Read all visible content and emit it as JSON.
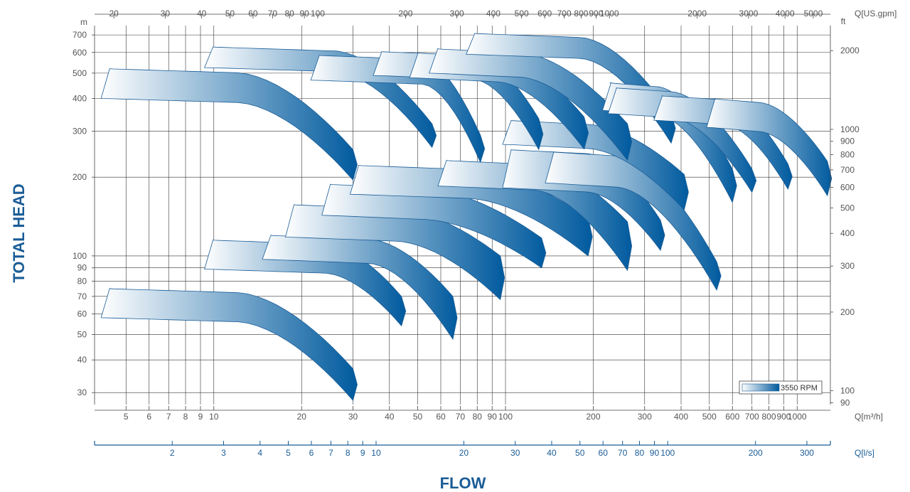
{
  "chart_data": {
    "type": "area",
    "title": "",
    "xlabel": "FLOW",
    "ylabel": "TOTAL HEAD",
    "x_scale": "log",
    "y_scale": "log",
    "xlim_m3h": [
      3.9,
      1300
    ],
    "ylim_m": [
      27,
      760
    ],
    "grid": true,
    "legend_position": "bottom-right",
    "legend_label": "3550 RPM",
    "gradient_colors": [
      "#ffffff",
      "#005a9e"
    ],
    "outline_color": "#1a5c96",
    "axes": {
      "bottom": {
        "unit": "Q[m³/h]",
        "ticks": [
          5,
          6,
          7,
          8,
          9,
          10,
          20,
          30,
          40,
          50,
          60,
          70,
          80,
          90,
          100,
          200,
          300,
          400,
          500,
          600,
          700,
          800,
          900,
          1000
        ]
      },
      "top": {
        "unit": "Q[US.gpm]",
        "ticks": [
          20,
          30,
          40,
          50,
          60,
          70,
          80,
          90,
          100,
          200,
          300,
          400,
          500,
          600,
          700,
          800,
          900,
          1000,
          2000,
          3000,
          4000,
          5000
        ]
      },
      "lps": {
        "unit": "Q[l/s]",
        "ticks": [
          2,
          3,
          4,
          5,
          6,
          7,
          8,
          9,
          10,
          20,
          30,
          40,
          50,
          60,
          70,
          80,
          90,
          100,
          200,
          300
        ]
      },
      "left": {
        "unit": "m",
        "ticks": [
          30,
          40,
          50,
          60,
          70,
          80,
          90,
          100,
          200,
          300,
          400,
          500,
          600,
          700
        ]
      },
      "right": {
        "unit": "ft",
        "ticks": [
          90,
          100,
          200,
          300,
          400,
          500,
          600,
          700,
          800,
          900,
          1000,
          2000
        ]
      }
    },
    "series": [
      {
        "q_min": 4.2,
        "q_knee": 12,
        "q_max": 30,
        "h_top_max": 520,
        "h_top_min": 255,
        "h_bot_max": 400,
        "h_bot_min": 195
      },
      {
        "q_min": 4.2,
        "q_knee": 12,
        "q_max": 30,
        "h_top_max": 75,
        "h_top_min": 37,
        "h_bot_max": 58,
        "h_bot_min": 28
      },
      {
        "q_min": 9.5,
        "q_knee": 24,
        "q_max": 44,
        "h_top_max": 115,
        "h_top_min": 70,
        "h_bot_max": 89,
        "h_bot_min": 54
      },
      {
        "q_min": 15,
        "q_knee": 34,
        "q_max": 66,
        "h_top_max": 120,
        "h_top_min": 70,
        "h_bot_max": 97,
        "h_bot_min": 48
      },
      {
        "q_min": 18,
        "q_knee": 42,
        "q_max": 96,
        "h_top_max": 157,
        "h_top_min": 100,
        "h_bot_max": 118,
        "h_bot_min": 68
      },
      {
        "q_min": 24,
        "q_knee": 52,
        "q_max": 133,
        "h_top_max": 188,
        "h_top_min": 117,
        "h_bot_max": 143,
        "h_bot_min": 90
      },
      {
        "q_min": 30,
        "q_knee": 74,
        "q_max": 192,
        "h_top_max": 222,
        "h_top_min": 140,
        "h_bot_max": 172,
        "h_bot_min": 100
      },
      {
        "q_min": 60,
        "q_knee": 125,
        "q_max": 262,
        "h_top_max": 232,
        "h_top_min": 135,
        "h_bot_max": 185,
        "h_bot_min": 88
      },
      {
        "q_min": 100,
        "q_knee": 190,
        "q_max": 340,
        "h_top_max": 255,
        "h_top_min": 137,
        "h_bot_max": 182,
        "h_bot_min": 105
      },
      {
        "q_min": 140,
        "q_knee": 240,
        "q_max": 530,
        "h_top_max": 250,
        "h_top_min": 95,
        "h_bot_max": 190,
        "h_bot_min": 74
      },
      {
        "q_min": 100,
        "q_knee": 190,
        "q_max": 410,
        "h_top_max": 330,
        "h_top_min": 205,
        "h_bot_max": 267,
        "h_bot_min": 150
      },
      {
        "q_min": 9.5,
        "q_knee": 26,
        "q_max": 56,
        "h_top_max": 630,
        "h_top_min": 320,
        "h_bot_max": 525,
        "h_bot_min": 260
      },
      {
        "q_min": 22,
        "q_knee": 52,
        "q_max": 82,
        "h_top_max": 585,
        "h_top_min": 290,
        "h_bot_max": 470,
        "h_bot_min": 228
      },
      {
        "q_min": 36,
        "q_knee": 78,
        "q_max": 130,
        "h_top_max": 605,
        "h_top_min": 335,
        "h_bot_max": 490,
        "h_bot_min": 255
      },
      {
        "q_min": 48,
        "q_knee": 94,
        "q_max": 186,
        "h_top_max": 598,
        "h_top_min": 340,
        "h_bot_max": 480,
        "h_bot_min": 256
      },
      {
        "q_min": 56,
        "q_knee": 112,
        "q_max": 262,
        "h_top_max": 620,
        "h_top_min": 320,
        "h_bot_max": 500,
        "h_bot_min": 232
      },
      {
        "q_min": 75,
        "q_knee": 180,
        "q_max": 370,
        "h_top_max": 710,
        "h_top_min": 350,
        "h_bot_max": 590,
        "h_bot_min": 270
      },
      {
        "q_min": 220,
        "q_knee": 330,
        "q_max": 600,
        "h_top_max": 460,
        "h_top_min": 215,
        "h_bot_max": 360,
        "h_bot_min": 160
      },
      {
        "q_min": 230,
        "q_knee": 370,
        "q_max": 700,
        "h_top_max": 440,
        "h_top_min": 215,
        "h_bot_max": 350,
        "h_bot_min": 175
      },
      {
        "q_min": 330,
        "q_knee": 560,
        "q_max": 930,
        "h_top_max": 410,
        "h_top_min": 225,
        "h_bot_max": 330,
        "h_bot_min": 180
      },
      {
        "q_min": 500,
        "q_knee": 740,
        "q_max": 1270,
        "h_top_max": 400,
        "h_top_min": 230,
        "h_bot_max": 310,
        "h_bot_min": 170
      }
    ]
  }
}
